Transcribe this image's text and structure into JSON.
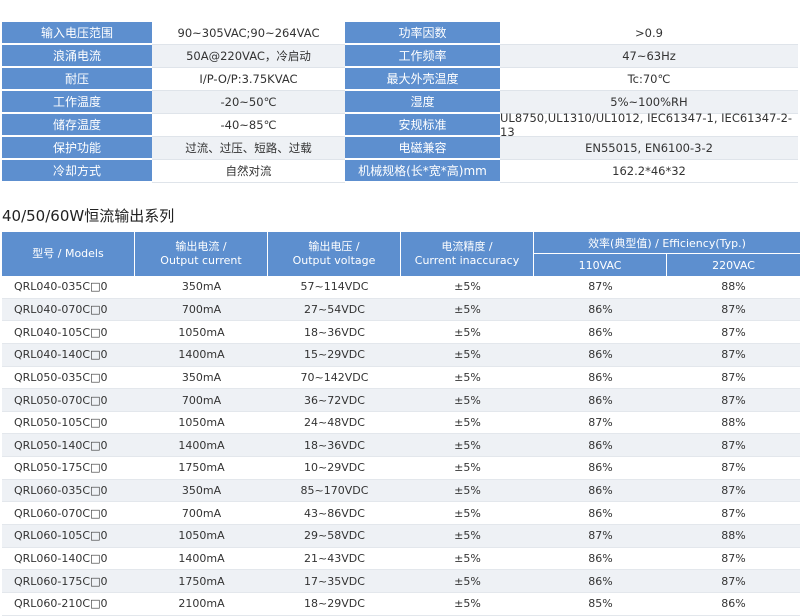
{
  "spec_table": [
    {
      "label1": "输入电压范围",
      "value1": "90~305VAC;90~264VAC",
      "label2": "功率因数",
      "value2": ">0.9"
    },
    {
      "label1": "浪涌电流",
      "value1": "50A@220VAC，冷启动",
      "label2": "工作频率",
      "value2": "47~63Hz"
    },
    {
      "label1": "耐压",
      "value1": "I/P-O/P:3.75KVAC",
      "label2": "最大外壳温度",
      "value2": "Tc:70℃"
    },
    {
      "label1": "工作温度",
      "value1": "-20~50℃",
      "label2": "湿度",
      "value2": "5%~100%RH"
    },
    {
      "label1": "储存温度",
      "value1": "-40~85℃",
      "label2": "安规标准",
      "value2": "UL8750,UL1310/UL1012, IEC61347-1, IEC61347-2-13"
    },
    {
      "label1": "保护功能",
      "value1": "过流、过压、短路、过载",
      "label2": "电磁兼容",
      "value2": "EN55015, EN6100-3-2"
    },
    {
      "label1": "冷却方式",
      "value1": "自然对流",
      "label2": "机械规格(长*宽*高)mm",
      "value2": "162.2*46*32"
    }
  ],
  "section_title": "40/50/60W恒流输出系列",
  "output_table": {
    "headers": {
      "model": "型号 / Models",
      "current_cn": "输出电流 /",
      "current_en": "Output current",
      "voltage_cn": "输出电压 /",
      "voltage_en": "Output voltage",
      "accuracy_cn": "电流精度 /",
      "accuracy_en": "Current inaccuracy",
      "efficiency": "效率(典型值) / Efficiency(Typ.)",
      "eff_110": "110VAC",
      "eff_220": "220VAC"
    },
    "rows": [
      {
        "model": "QRL040-035C□0",
        "current": "350mA",
        "voltage": "57~114VDC",
        "accuracy": "±5%",
        "eff110": "87%",
        "eff220": "88%"
      },
      {
        "model": "QRL040-070C□0",
        "current": "700mA",
        "voltage": "27~54VDC",
        "accuracy": "±5%",
        "eff110": "86%",
        "eff220": "87%"
      },
      {
        "model": "QRL040-105C□0",
        "current": "1050mA",
        "voltage": "18~36VDC",
        "accuracy": "±5%",
        "eff110": "86%",
        "eff220": "87%"
      },
      {
        "model": "QRL040-140C□0",
        "current": "1400mA",
        "voltage": "15~29VDC",
        "accuracy": "±5%",
        "eff110": "86%",
        "eff220": "87%"
      },
      {
        "model": "QRL050-035C□0",
        "current": "350mA",
        "voltage": "70~142VDC",
        "accuracy": "±5%",
        "eff110": "86%",
        "eff220": "87%"
      },
      {
        "model": "QRL050-070C□0",
        "current": "700mA",
        "voltage": "36~72VDC",
        "accuracy": "±5%",
        "eff110": "86%",
        "eff220": "87%"
      },
      {
        "model": "QRL050-105C□0",
        "current": "1050mA",
        "voltage": "24~48VDC",
        "accuracy": "±5%",
        "eff110": "87%",
        "eff220": "88%"
      },
      {
        "model": "QRL050-140C□0",
        "current": "1400mA",
        "voltage": "18~36VDC",
        "accuracy": "±5%",
        "eff110": "86%",
        "eff220": "87%"
      },
      {
        "model": "QRL050-175C□0",
        "current": "1750mA",
        "voltage": "10~29VDC",
        "accuracy": "±5%",
        "eff110": "86%",
        "eff220": "87%"
      },
      {
        "model": "QRL060-035C□0",
        "current": "350mA",
        "voltage": "85~170VDC",
        "accuracy": "±5%",
        "eff110": "86%",
        "eff220": "87%"
      },
      {
        "model": "QRL060-070C□0",
        "current": "700mA",
        "voltage": "43~86VDC",
        "accuracy": "±5%",
        "eff110": "86%",
        "eff220": "87%"
      },
      {
        "model": "QRL060-105C□0",
        "current": "1050mA",
        "voltage": "29~58VDC",
        "accuracy": "±5%",
        "eff110": "87%",
        "eff220": "88%"
      },
      {
        "model": "QRL060-140C□0",
        "current": "1400mA",
        "voltage": "21~43VDC",
        "accuracy": "±5%",
        "eff110": "86%",
        "eff220": "87%"
      },
      {
        "model": "QRL060-175C□0",
        "current": "1750mA",
        "voltage": "17~35VDC",
        "accuracy": "±5%",
        "eff110": "86%",
        "eff220": "87%"
      },
      {
        "model": "QRL060-210C□0",
        "current": "2100mA",
        "voltage": "18~29VDC",
        "accuracy": "±5%",
        "eff110": "85%",
        "eff220": "86%"
      }
    ]
  },
  "colors": {
    "header_blue": "#5d8fcf",
    "row_alt": "#eef1f5"
  }
}
